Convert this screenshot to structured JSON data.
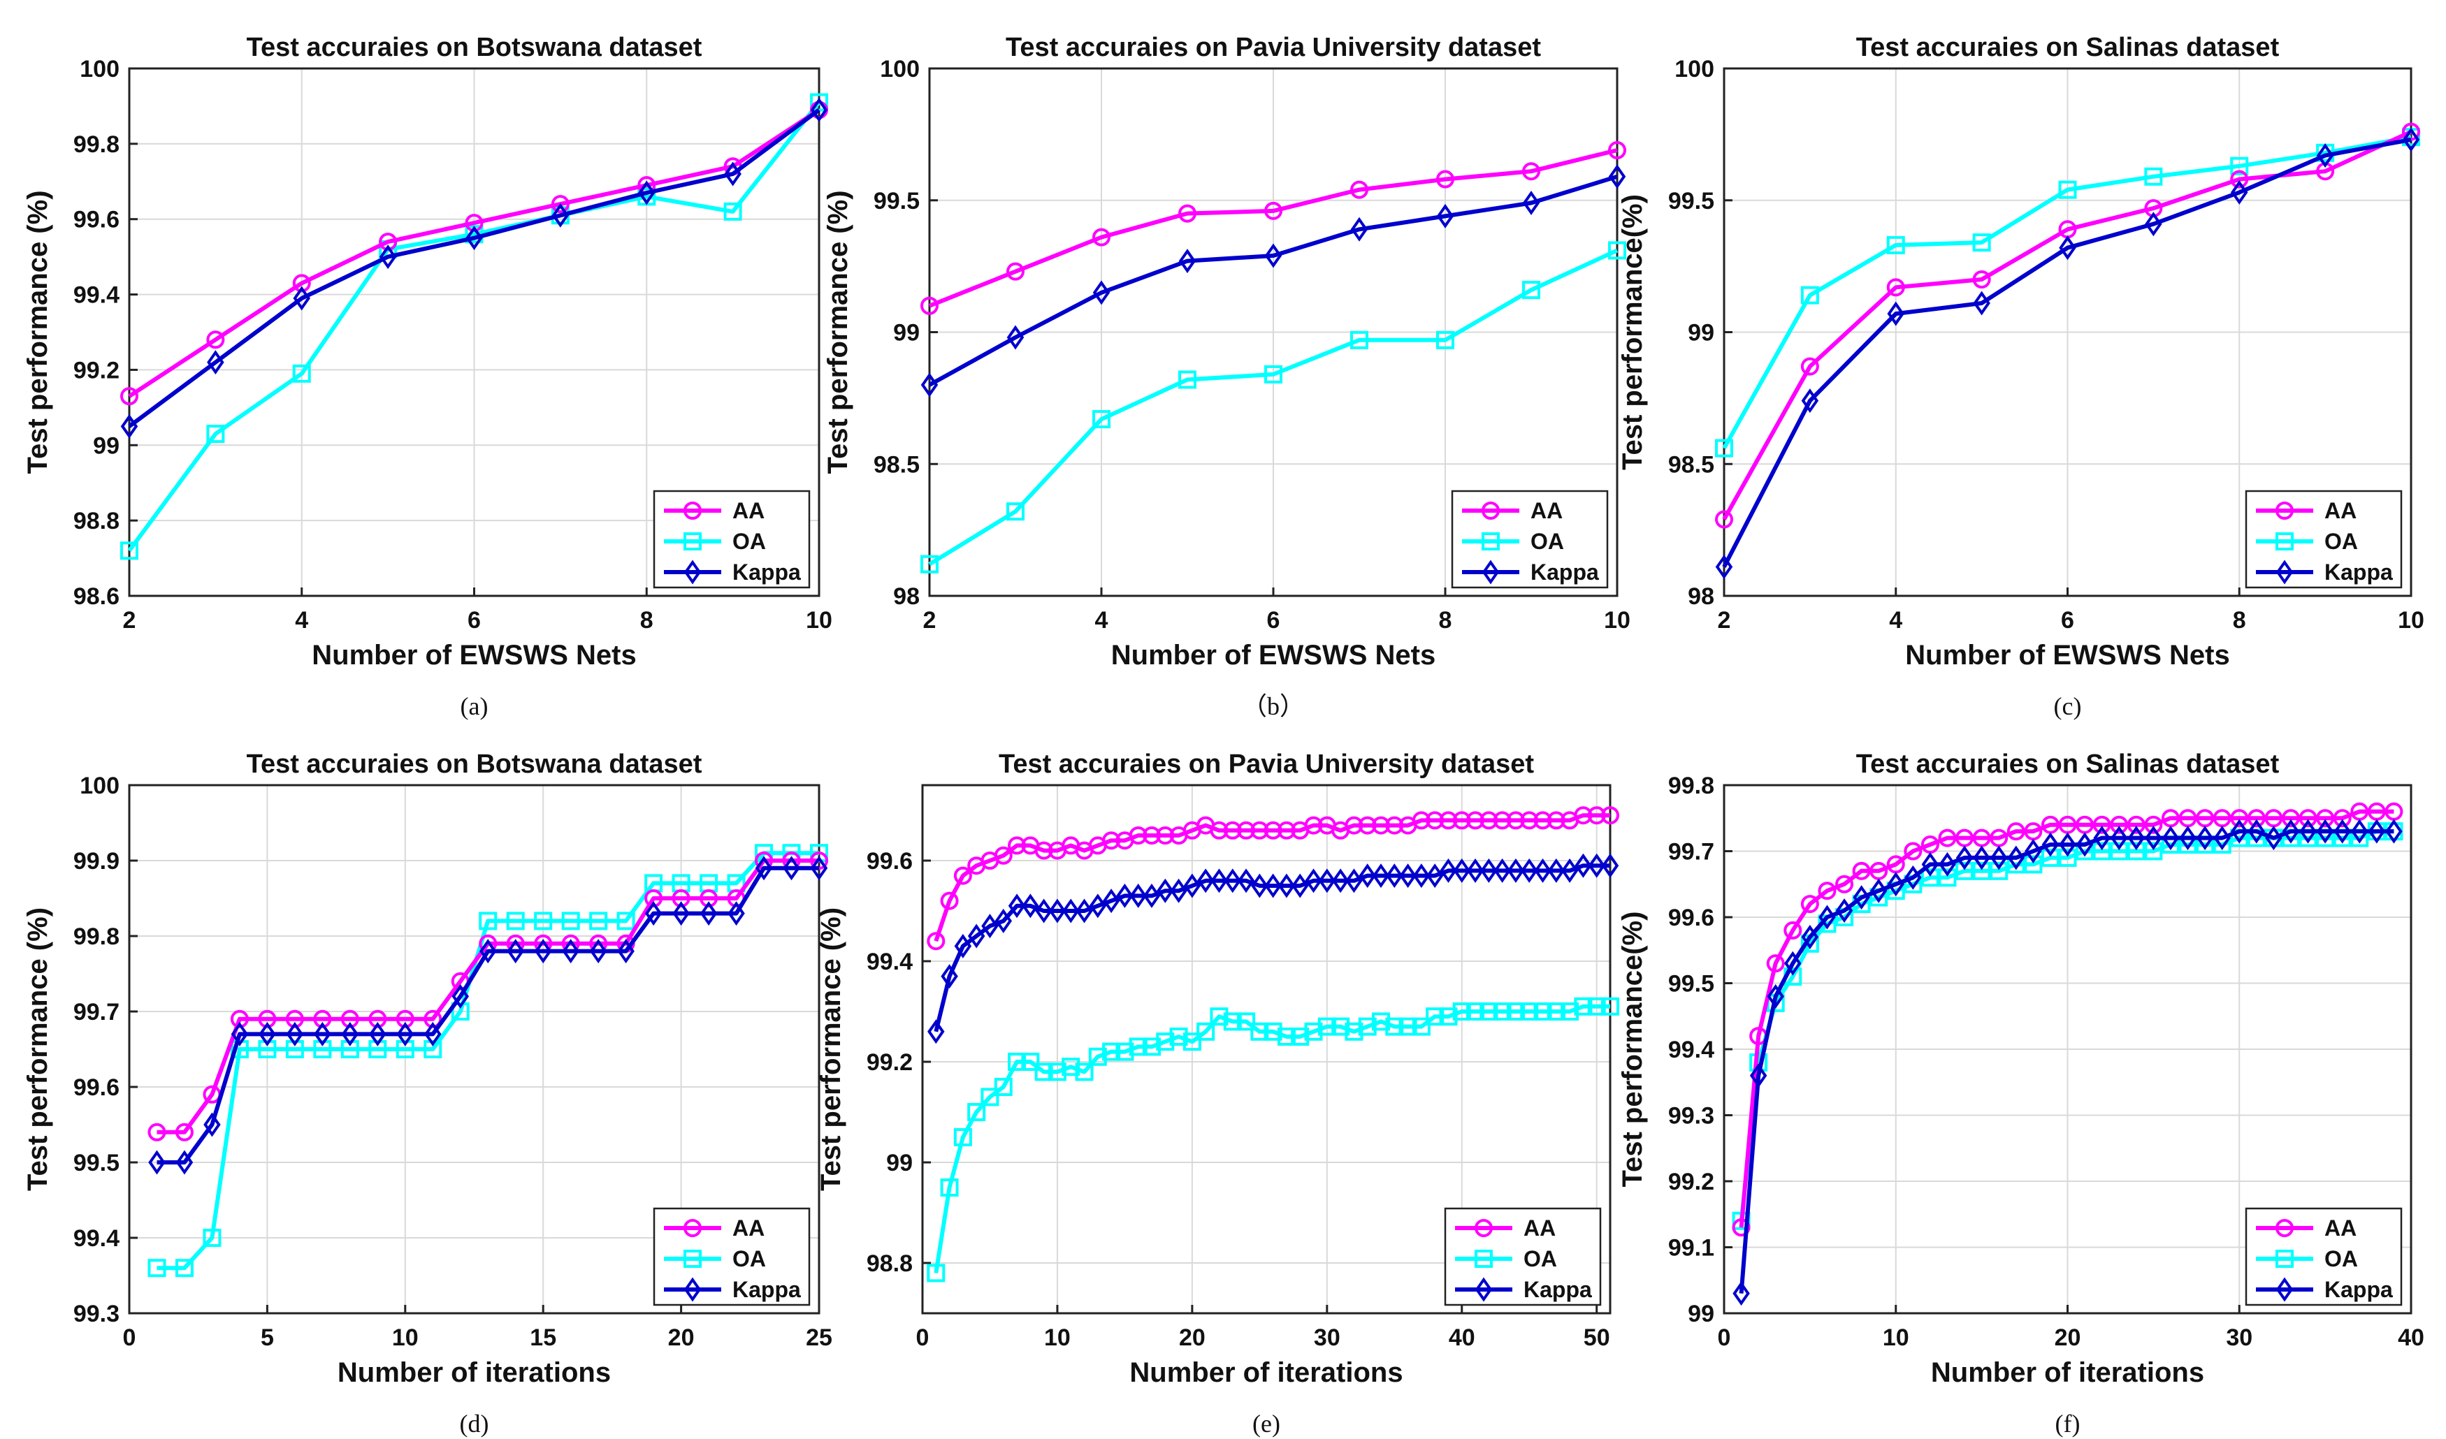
{
  "colors": {
    "AA": "#ff00ff",
    "OA": "#00ffff",
    "Kappa": "#0000cd"
  },
  "chart_data": [
    {
      "id": "a",
      "type": "line",
      "title": "Test accuraies on Botswana dataset",
      "xlabel": "Number of EWSWS Nets",
      "ylabel": "Test performance (%)",
      "caption": "(a)",
      "xlim": [
        2,
        10
      ],
      "ylim": [
        98.6,
        100
      ],
      "xticks": [
        2,
        4,
        6,
        8,
        10
      ],
      "xtick_labels": [
        "2",
        "4",
        "6",
        "8",
        "10"
      ],
      "yticks": [
        98.6,
        98.8,
        99,
        99.2,
        99.4,
        99.6,
        99.8,
        100
      ],
      "ytick_labels": [
        "98.6",
        "98.8",
        "99",
        "99.2",
        "99.4",
        "99.6",
        "99.8",
        "100"
      ],
      "legend": "bottom-right",
      "x": [
        2,
        3,
        4,
        5,
        6,
        7,
        8,
        9,
        10
      ],
      "series": [
        {
          "name": "AA",
          "values": [
            99.13,
            99.28,
            99.43,
            99.54,
            99.59,
            99.64,
            99.69,
            99.74,
            99.89
          ]
        },
        {
          "name": "OA",
          "values": [
            98.72,
            99.03,
            99.19,
            99.52,
            99.56,
            99.61,
            99.66,
            99.62,
            99.91
          ]
        },
        {
          "name": "Kappa",
          "values": [
            99.05,
            99.22,
            99.39,
            99.5,
            99.55,
            99.61,
            99.67,
            99.72,
            99.89
          ]
        }
      ]
    },
    {
      "id": "b",
      "type": "line",
      "title": "Test accuraies on Pavia University dataset",
      "xlabel": "Number of EWSWS Nets",
      "ylabel": "Test performance (%)",
      "caption": "（b）",
      "xlim": [
        2,
        10
      ],
      "ylim": [
        98,
        100
      ],
      "xticks": [
        2,
        4,
        6,
        8,
        10
      ],
      "xtick_labels": [
        "2",
        "4",
        "6",
        "8",
        "10"
      ],
      "yticks": [
        98,
        98.5,
        99,
        99.5,
        100
      ],
      "ytick_labels": [
        "98",
        "98.5",
        "99",
        "99.5",
        "100"
      ],
      "legend": "bottom-right",
      "x": [
        2,
        3,
        4,
        5,
        6,
        7,
        8,
        9,
        10
      ],
      "series": [
        {
          "name": "AA",
          "values": [
            99.1,
            99.23,
            99.36,
            99.45,
            99.46,
            99.54,
            99.58,
            99.61,
            99.69
          ]
        },
        {
          "name": "OA",
          "values": [
            98.12,
            98.32,
            98.67,
            98.82,
            98.84,
            98.97,
            98.97,
            99.16,
            99.31
          ]
        },
        {
          "name": "Kappa",
          "values": [
            98.8,
            98.98,
            99.15,
            99.27,
            99.29,
            99.39,
            99.44,
            99.49,
            99.59
          ]
        }
      ]
    },
    {
      "id": "c",
      "type": "line",
      "title": "Test accuraies on Salinas dataset",
      "xlabel": "Number of EWSWS Nets",
      "ylabel": "Test performance(%)",
      "caption": "(c)",
      "xlim": [
        2,
        10
      ],
      "ylim": [
        98,
        100
      ],
      "xticks": [
        2,
        4,
        6,
        8,
        10
      ],
      "xtick_labels": [
        "2",
        "4",
        "6",
        "8",
        "10"
      ],
      "yticks": [
        98,
        98.5,
        99,
        99.5,
        100
      ],
      "ytick_labels": [
        "98",
        "98.5",
        "99",
        "99.5",
        "100"
      ],
      "legend": "bottom-right",
      "x": [
        2,
        3,
        4,
        5,
        6,
        7,
        8,
        9,
        10
      ],
      "series": [
        {
          "name": "AA",
          "values": [
            98.29,
            98.87,
            99.17,
            99.2,
            99.39,
            99.47,
            99.58,
            99.61,
            99.76
          ]
        },
        {
          "name": "OA",
          "values": [
            98.56,
            99.14,
            99.33,
            99.34,
            99.54,
            99.59,
            99.63,
            99.68,
            99.74
          ]
        },
        {
          "name": "Kappa",
          "values": [
            98.11,
            98.74,
            99.07,
            99.11,
            99.32,
            99.41,
            99.53,
            99.67,
            99.73
          ]
        }
      ]
    },
    {
      "id": "d",
      "type": "line",
      "title": "Test accuraies on Botswana dataset",
      "xlabel": "Number of iterations",
      "ylabel": "Test performance (%)",
      "caption": "(d)",
      "xlim": [
        0,
        25
      ],
      "ylim": [
        99.3,
        100
      ],
      "xticks": [
        0,
        5,
        10,
        15,
        20,
        25
      ],
      "xtick_labels": [
        "0",
        "5",
        "10",
        "15",
        "20",
        "25"
      ],
      "yticks": [
        99.3,
        99.4,
        99.5,
        99.6,
        99.7,
        99.8,
        99.9,
        100
      ],
      "ytick_labels": [
        "99.3",
        "99.4",
        "99.5",
        "99.6",
        "99.7",
        "99.8",
        "99.9",
        "100"
      ],
      "legend": "bottom-right",
      "x": [
        1,
        2,
        3,
        4,
        5,
        6,
        7,
        8,
        9,
        10,
        11,
        12,
        13,
        14,
        15,
        16,
        17,
        18,
        19,
        20,
        21,
        22,
        23,
        24,
        25
      ],
      "series": [
        {
          "name": "AA",
          "values": [
            99.54,
            99.54,
            99.59,
            99.69,
            99.69,
            99.69,
            99.69,
            99.69,
            99.69,
            99.69,
            99.69,
            99.74,
            99.79,
            99.79,
            99.79,
            99.79,
            99.79,
            99.79,
            99.85,
            99.85,
            99.85,
            99.85,
            99.9,
            99.9,
            99.9
          ]
        },
        {
          "name": "OA",
          "values": [
            99.36,
            99.36,
            99.4,
            99.65,
            99.65,
            99.65,
            99.65,
            99.65,
            99.65,
            99.65,
            99.65,
            99.7,
            99.82,
            99.82,
            99.82,
            99.82,
            99.82,
            99.82,
            99.87,
            99.87,
            99.87,
            99.87,
            99.91,
            99.91,
            99.91
          ]
        },
        {
          "name": "Kappa",
          "values": [
            99.5,
            99.5,
            99.55,
            99.67,
            99.67,
            99.67,
            99.67,
            99.67,
            99.67,
            99.67,
            99.67,
            99.72,
            99.78,
            99.78,
            99.78,
            99.78,
            99.78,
            99.78,
            99.83,
            99.83,
            99.83,
            99.83,
            99.89,
            99.89,
            99.89
          ]
        }
      ]
    },
    {
      "id": "e",
      "type": "line",
      "title": "Test accuraies on Pavia University dataset",
      "xlabel": "Number of iterations",
      "ylabel": "Test performance (%)",
      "caption": "(e)",
      "xlim": [
        0,
        51
      ],
      "ylim": [
        98.7,
        99.75
      ],
      "xticks": [
        0,
        10,
        20,
        30,
        40,
        50
      ],
      "xtick_labels": [
        "0",
        "10",
        "20",
        "30",
        "40",
        "50"
      ],
      "yticks": [
        98.8,
        99,
        99.2,
        99.4,
        99.6
      ],
      "ytick_labels": [
        "98.8",
        "99",
        "99.2",
        "99.4",
        "99.6"
      ],
      "legend": "bottom-right",
      "x": [
        1,
        2,
        3,
        4,
        5,
        6,
        7,
        8,
        9,
        10,
        11,
        12,
        13,
        14,
        15,
        16,
        17,
        18,
        19,
        20,
        21,
        22,
        23,
        24,
        25,
        26,
        27,
        28,
        29,
        30,
        31,
        32,
        33,
        34,
        35,
        36,
        37,
        38,
        39,
        40,
        41,
        42,
        43,
        44,
        45,
        46,
        47,
        48,
        49,
        50,
        51
      ],
      "series": [
        {
          "name": "AA",
          "values": [
            99.44,
            99.52,
            99.57,
            99.59,
            99.6,
            99.61,
            99.63,
            99.63,
            99.62,
            99.62,
            99.63,
            99.62,
            99.63,
            99.64,
            99.64,
            99.65,
            99.65,
            99.65,
            99.65,
            99.66,
            99.67,
            99.66,
            99.66,
            99.66,
            99.66,
            99.66,
            99.66,
            99.66,
            99.67,
            99.67,
            99.66,
            99.67,
            99.67,
            99.67,
            99.67,
            99.67,
            99.68,
            99.68,
            99.68,
            99.68,
            99.68,
            99.68,
            99.68,
            99.68,
            99.68,
            99.68,
            99.68,
            99.68,
            99.69,
            99.69,
            99.69
          ]
        },
        {
          "name": "OA",
          "values": [
            98.78,
            98.95,
            99.05,
            99.1,
            99.13,
            99.15,
            99.2,
            99.2,
            99.18,
            99.18,
            99.19,
            99.18,
            99.21,
            99.22,
            99.22,
            99.23,
            99.23,
            99.24,
            99.25,
            99.24,
            99.26,
            99.29,
            99.28,
            99.28,
            99.26,
            99.26,
            99.25,
            99.25,
            99.26,
            99.27,
            99.27,
            99.26,
            99.27,
            99.28,
            99.27,
            99.27,
            99.27,
            99.29,
            99.29,
            99.3,
            99.3,
            99.3,
            99.3,
            99.3,
            99.3,
            99.3,
            99.3,
            99.3,
            99.31,
            99.31,
            99.31
          ]
        },
        {
          "name": "Kappa",
          "values": [
            99.26,
            99.37,
            99.43,
            99.45,
            99.47,
            99.48,
            99.51,
            99.51,
            99.5,
            99.5,
            99.5,
            99.5,
            99.51,
            99.52,
            99.53,
            99.53,
            99.53,
            99.54,
            99.54,
            99.55,
            99.56,
            99.56,
            99.56,
            99.56,
            99.55,
            99.55,
            99.55,
            99.55,
            99.56,
            99.56,
            99.56,
            99.56,
            99.57,
            99.57,
            99.57,
            99.57,
            99.57,
            99.57,
            99.58,
            99.58,
            99.58,
            99.58,
            99.58,
            99.58,
            99.58,
            99.58,
            99.58,
            99.58,
            99.59,
            99.59,
            99.59
          ]
        }
      ]
    },
    {
      "id": "f",
      "type": "line",
      "title": "Test accuraies on Salinas dataset",
      "xlabel": "Number of iterations",
      "ylabel": "Test performance(%)",
      "caption": "(f)",
      "xlim": [
        0,
        40
      ],
      "ylim": [
        99,
        99.8
      ],
      "xticks": [
        0,
        10,
        20,
        30,
        40
      ],
      "xtick_labels": [
        "0",
        "10",
        "20",
        "30",
        "40"
      ],
      "yticks": [
        99,
        99.1,
        99.2,
        99.3,
        99.4,
        99.5,
        99.6,
        99.7,
        99.8
      ],
      "ytick_labels": [
        "99",
        "99.1",
        "99.2",
        "99.3",
        "99.4",
        "99.5",
        "99.6",
        "99.7",
        "99.8"
      ],
      "legend": "bottom-right",
      "x": [
        1,
        2,
        3,
        4,
        5,
        6,
        7,
        8,
        9,
        10,
        11,
        12,
        13,
        14,
        15,
        16,
        17,
        18,
        19,
        20,
        21,
        22,
        23,
        24,
        25,
        26,
        27,
        28,
        29,
        30,
        31,
        32,
        33,
        34,
        35,
        36,
        37,
        38,
        39
      ],
      "series": [
        {
          "name": "AA",
          "values": [
            99.13,
            99.42,
            99.53,
            99.58,
            99.62,
            99.64,
            99.65,
            99.67,
            99.67,
            99.68,
            99.7,
            99.71,
            99.72,
            99.72,
            99.72,
            99.72,
            99.73,
            99.73,
            99.74,
            99.74,
            99.74,
            99.74,
            99.74,
            99.74,
            99.74,
            99.75,
            99.75,
            99.75,
            99.75,
            99.75,
            99.75,
            99.75,
            99.75,
            99.75,
            99.75,
            99.75,
            99.76,
            99.76,
            99.76
          ]
        },
        {
          "name": "OA",
          "values": [
            99.14,
            99.38,
            99.47,
            99.51,
            99.56,
            99.59,
            99.6,
            99.62,
            99.63,
            99.64,
            99.65,
            99.66,
            99.66,
            99.67,
            99.67,
            99.67,
            99.68,
            99.68,
            99.69,
            99.69,
            99.7,
            99.7,
            99.7,
            99.7,
            99.7,
            99.71,
            99.71,
            99.71,
            99.71,
            99.72,
            99.72,
            99.72,
            99.72,
            99.72,
            99.72,
            99.72,
            99.72,
            99.73,
            99.73
          ]
        },
        {
          "name": "Kappa",
          "values": [
            99.03,
            99.36,
            99.48,
            99.53,
            99.57,
            99.6,
            99.61,
            99.63,
            99.64,
            99.65,
            99.66,
            99.68,
            99.68,
            99.69,
            99.69,
            99.69,
            99.69,
            99.7,
            99.71,
            99.71,
            99.71,
            99.72,
            99.72,
            99.72,
            99.72,
            99.72,
            99.72,
            99.72,
            99.72,
            99.73,
            99.73,
            99.72,
            99.73,
            99.73,
            99.73,
            99.73,
            99.73,
            99.73,
            99.73
          ]
        }
      ]
    }
  ]
}
